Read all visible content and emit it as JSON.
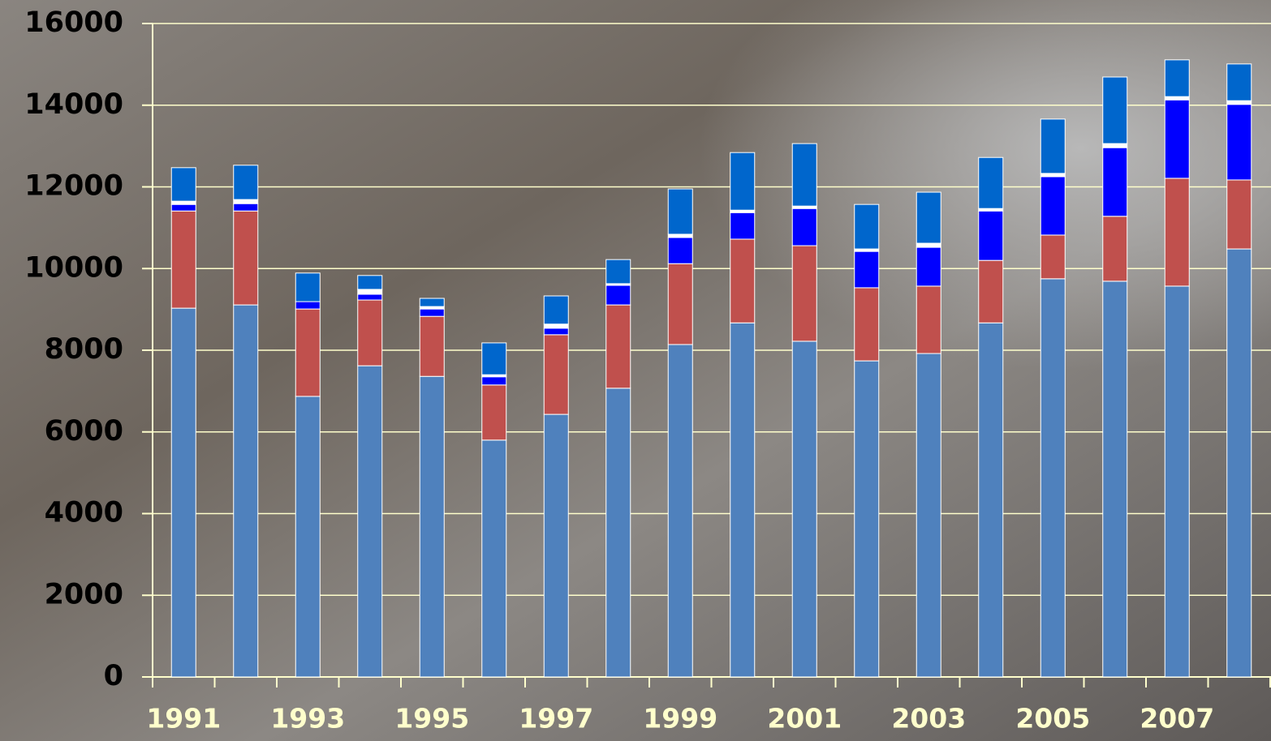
{
  "chart_data": {
    "type": "stacked-bar",
    "categories": [
      "1991",
      null,
      "1993",
      null,
      "1995",
      null,
      "1997",
      null,
      "1999",
      null,
      "2001",
      null,
      "2003",
      null,
      "2005",
      null,
      "2007",
      null
    ],
    "series": [
      {
        "color": "#4f81bd",
        "values": [
          9030,
          9110,
          6870,
          7620,
          7360,
          5800,
          6430,
          7070,
          8140,
          8670,
          8220,
          7740,
          7920,
          8670,
          9750,
          9690,
          9570,
          10480
        ]
      },
      {
        "color": "#c0504d",
        "values": [
          2380,
          2300,
          2140,
          1610,
          1470,
          1350,
          1950,
          2040,
          1980,
          2050,
          2340,
          1790,
          1650,
          1530,
          1070,
          1590,
          2640,
          1690
        ]
      },
      {
        "color": "#0000ff",
        "values": [
          160,
          180,
          180,
          140,
          180,
          200,
          160,
          480,
          640,
          650,
          910,
          890,
          950,
          1210,
          1430,
          1680,
          1920,
          1850
        ]
      },
      {
        "color": "#ffffff",
        "values": [
          80,
          100,
          0,
          120,
          60,
          50,
          100,
          40,
          80,
          60,
          60,
          60,
          100,
          60,
          80,
          100,
          80,
          90
        ]
      },
      {
        "color": "#0066cc",
        "values": [
          820,
          840,
          700,
          340,
          200,
          780,
          690,
          590,
          1110,
          1410,
          1530,
          1090,
          1250,
          1250,
          1330,
          1630,
          900,
          900
        ]
      }
    ],
    "ylim": [
      0,
      16000
    ],
    "yticks": [
      0,
      2000,
      4000,
      6000,
      8000,
      10000,
      12000,
      14000,
      16000
    ],
    "grid": true
  }
}
